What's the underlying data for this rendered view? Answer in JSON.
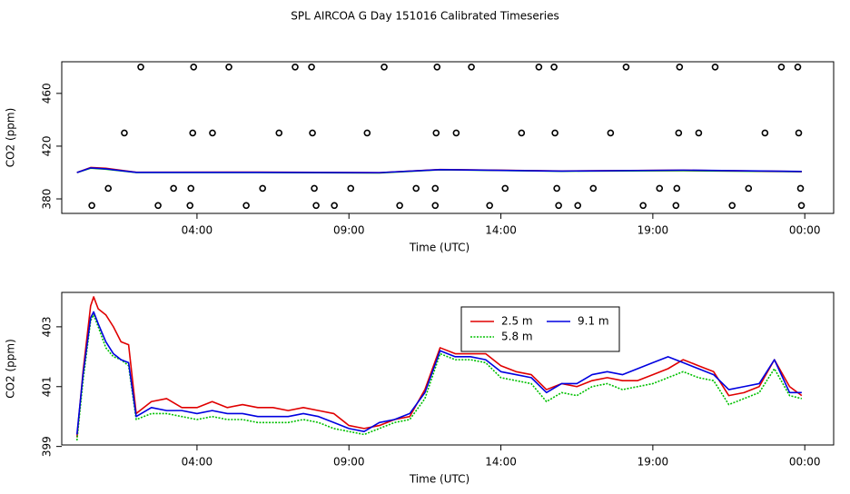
{
  "title": "SPL AIRCOA G  Day 151016  Calibrated Timeseries",
  "chart_data": [
    {
      "type": "line",
      "xlabel": "Time (UTC)",
      "ylabel": "CO2 (ppm)",
      "xlim": [
        -0.45,
        24.95
      ],
      "xticks": [
        {
          "value": 4,
          "label": "04:00"
        },
        {
          "value": 9,
          "label": "09:00"
        },
        {
          "value": 14,
          "label": "14:00"
        },
        {
          "value": 19,
          "label": "19:00"
        },
        {
          "value": 24,
          "label": "00:00"
        }
      ],
      "ylim": [
        369,
        484
      ],
      "yticks": [
        380,
        420,
        460
      ],
      "x": [
        0.05,
        0.5,
        1.0,
        2.0,
        6,
        10,
        12,
        16,
        20,
        23.9
      ],
      "series": [
        {
          "color": "#00c000",
          "values": [
            400,
            403.3,
            402.5,
            400.0,
            400.0,
            399.7,
            402.1,
            401.0,
            401.4,
            400.6
          ]
        },
        {
          "color": "#e00000",
          "values": [
            400,
            403.8,
            403.2,
            400.2,
            400.3,
            399.9,
            402.3,
            401.2,
            401.8,
            400.7
          ]
        },
        {
          "color": "#0000e0",
          "values": [
            400,
            403.5,
            402.8,
            400.1,
            400.1,
            399.9,
            402.2,
            401.1,
            401.8,
            400.8
          ]
        }
      ],
      "points": {
        "color": "#000000",
        "x": [
          2.15,
          3.89,
          5.05,
          7.23,
          7.77,
          10.16,
          11.9,
          13.03,
          15.25,
          15.75,
          18.12,
          19.88,
          21.05,
          23.23,
          23.77,
          1.61,
          3.86,
          4.51,
          6.7,
          7.8,
          9.6,
          11.87,
          12.53,
          14.68,
          15.78,
          17.61,
          19.85,
          20.51,
          22.69,
          23.8,
          1.08,
          3.23,
          3.8,
          6.16,
          7.86,
          9.06,
          11.21,
          11.84,
          14.14,
          15.84,
          17.04,
          19.22,
          19.79,
          22.15,
          23.86,
          0.54,
          2.72,
          3.77,
          5.62,
          7.92,
          8.52,
          10.67,
          11.84,
          13.63,
          15.9,
          16.53,
          18.68,
          19.76,
          21.61,
          23.89
        ],
        "values": [
          480,
          480,
          480,
          480,
          480,
          480,
          480,
          480,
          480,
          480,
          480,
          480,
          480,
          480,
          480,
          430,
          430,
          430,
          430,
          430,
          430,
          430,
          430,
          430,
          430,
          430,
          430,
          430,
          430,
          430,
          388,
          388,
          388,
          388,
          388,
          388,
          388,
          388,
          388,
          388,
          388,
          388,
          388,
          388,
          388,
          375,
          375,
          375,
          375,
          375,
          375,
          375,
          375,
          375,
          375,
          375,
          375,
          375,
          375,
          375
        ]
      }
    },
    {
      "type": "line",
      "xlabel": "Time (UTC)",
      "ylabel": "CO2 (ppm)",
      "xlim": [
        -0.45,
        24.95
      ],
      "xticks": [
        {
          "value": 4,
          "label": "04:00"
        },
        {
          "value": 9,
          "label": "09:00"
        },
        {
          "value": 14,
          "label": "14:00"
        },
        {
          "value": 19,
          "label": "19:00"
        },
        {
          "value": 24,
          "label": "00:00"
        }
      ],
      "ylim": [
        399.05,
        404.15
      ],
      "yticks": [
        399,
        401,
        403
      ],
      "legend": "top",
      "x": [
        0.05,
        0.25,
        0.5,
        0.6,
        0.75,
        1.0,
        1.25,
        1.5,
        1.75,
        2.0,
        2.5,
        3.0,
        3.5,
        4.0,
        4.5,
        5.0,
        5.5,
        6.0,
        6.5,
        7.0,
        7.5,
        8.0,
        8.5,
        9.0,
        9.5,
        10.0,
        10.5,
        11.0,
        11.5,
        12.0,
        12.5,
        13.0,
        13.5,
        14.0,
        14.5,
        15.0,
        15.5,
        16.0,
        16.5,
        17.0,
        17.5,
        18.0,
        18.5,
        19.0,
        19.5,
        20.0,
        20.5,
        21.0,
        21.5,
        22.0,
        22.5,
        23.0,
        23.5,
        23.9
      ],
      "series": [
        {
          "name": "2.5 m",
          "color": "#e00000",
          "values": [
            399.3,
            401.5,
            403.7,
            404.0,
            403.6,
            403.4,
            403.0,
            402.5,
            402.4,
            400.1,
            400.5,
            400.6,
            400.3,
            400.3,
            400.5,
            400.3,
            400.4,
            400.3,
            400.3,
            400.2,
            400.3,
            400.2,
            400.1,
            399.7,
            399.6,
            399.7,
            399.9,
            400.0,
            400.9,
            402.3,
            402.1,
            402.1,
            402.1,
            401.7,
            401.5,
            401.4,
            400.9,
            401.1,
            401.0,
            401.2,
            401.3,
            401.2,
            401.2,
            401.4,
            401.6,
            401.9,
            401.7,
            401.5,
            400.7,
            400.8,
            401.0,
            401.9,
            401.0,
            400.7
          ]
        },
        {
          "name": "5.8 m",
          "color": "#00c000",
          "line_style": "dotted",
          "values": [
            399.2,
            401.2,
            403.2,
            403.4,
            403.0,
            402.3,
            402.0,
            401.9,
            401.7,
            399.9,
            400.1,
            400.1,
            400.0,
            399.9,
            400.0,
            399.9,
            399.9,
            399.8,
            399.8,
            399.8,
            399.9,
            399.8,
            399.6,
            399.5,
            399.4,
            399.6,
            399.8,
            399.9,
            400.6,
            402.1,
            401.9,
            401.9,
            401.8,
            401.3,
            401.2,
            401.1,
            400.5,
            400.8,
            400.7,
            401.0,
            401.1,
            400.9,
            401.0,
            401.1,
            401.3,
            401.5,
            401.3,
            401.2,
            400.4,
            400.6,
            400.8,
            401.6,
            400.7,
            400.6
          ]
        },
        {
          "name": "9.1 m",
          "color": "#0000e0",
          "values": [
            399.4,
            401.4,
            403.3,
            403.5,
            403.1,
            402.5,
            402.1,
            401.9,
            401.8,
            400.0,
            400.3,
            400.2,
            400.2,
            400.1,
            400.2,
            400.1,
            400.1,
            400.0,
            400.0,
            400.0,
            400.1,
            400.0,
            399.8,
            399.6,
            399.5,
            399.8,
            399.9,
            400.1,
            400.8,
            402.2,
            402.0,
            402.0,
            401.9,
            401.5,
            401.4,
            401.3,
            400.8,
            401.1,
            401.1,
            401.4,
            401.5,
            401.4,
            401.6,
            401.8,
            402.0,
            401.8,
            401.6,
            401.4,
            400.9,
            401.0,
            401.1,
            401.9,
            400.8,
            400.8
          ]
        }
      ]
    }
  ]
}
